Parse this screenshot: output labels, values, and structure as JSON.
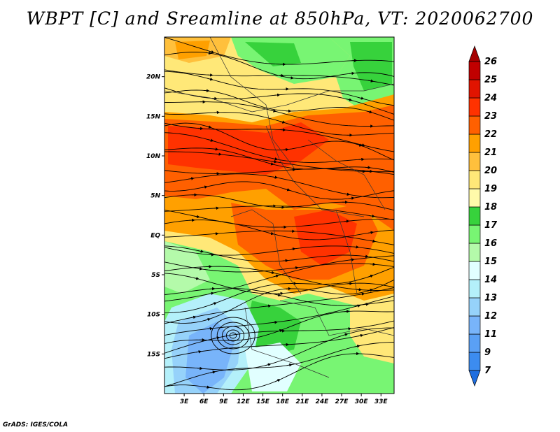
{
  "title": "WBPT [C] and Sreamline at 850hPa, VT: 2020062700",
  "credit": "GrADS: IGES/COLA",
  "map": {
    "lon_range": [
      0,
      35
    ],
    "lat_range": [
      -20,
      25
    ],
    "lat_ticks": [
      {
        "lat": 20,
        "label": "20N"
      },
      {
        "lat": 15,
        "label": "15N"
      },
      {
        "lat": 10,
        "label": "10N"
      },
      {
        "lat": 5,
        "label": "5N"
      },
      {
        "lat": 0,
        "label": "EQ"
      },
      {
        "lat": -5,
        "label": "5S"
      },
      {
        "lat": -10,
        "label": "10S"
      },
      {
        "lat": -15,
        "label": "15S"
      }
    ],
    "lon_ticks": [
      {
        "lon": 3,
        "label": "3E"
      },
      {
        "lon": 6,
        "label": "6E"
      },
      {
        "lon": 9,
        "label": "9E"
      },
      {
        "lon": 12,
        "label": "12E"
      },
      {
        "lon": 15,
        "label": "15E"
      },
      {
        "lon": 18,
        "label": "18E"
      },
      {
        "lon": 21,
        "label": "21E"
      },
      {
        "lon": 24,
        "label": "24E"
      },
      {
        "lon": 27,
        "label": "27E"
      },
      {
        "lon": 30,
        "label": "30E"
      },
      {
        "lon": 33,
        "label": "33E"
      }
    ]
  },
  "colorbar": {
    "levels": [
      "7",
      "9",
      "11",
      "12",
      "13",
      "14",
      "15",
      "16",
      "17",
      "18",
      "19",
      "20",
      "21",
      "22",
      "23",
      "24",
      "25",
      "26"
    ],
    "colors": [
      "#1e6ee0",
      "#3c8cf0",
      "#5aa0f5",
      "#78b4fa",
      "#96d2fa",
      "#b4f0fa",
      "#e1ffff",
      "#b4faaa",
      "#78f573",
      "#37d23c",
      "#fffaaa",
      "#ffe878",
      "#ffc03c",
      "#ffa000",
      "#ff6000",
      "#ff3200",
      "#e11400",
      "#c00000",
      "#a50000"
    ]
  }
}
